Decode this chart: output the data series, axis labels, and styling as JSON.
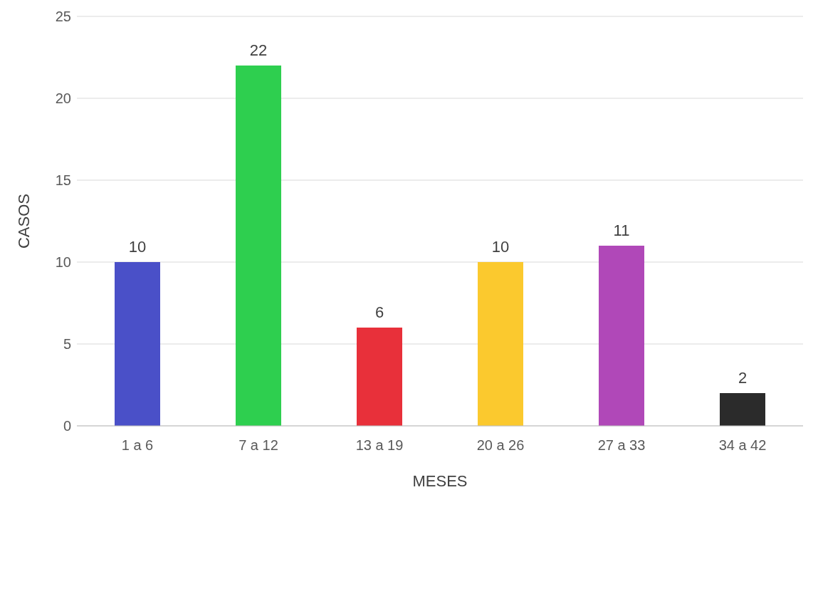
{
  "chart_data": {
    "type": "bar",
    "xlabel": "MESES",
    "ylabel": "CASOS",
    "categories": [
      "1 a 6",
      "7 a 12",
      "13 a 19",
      "20 a 26",
      "27 a 33",
      "34 a 42"
    ],
    "values": [
      10,
      22,
      6,
      10,
      11,
      2
    ],
    "colors": [
      "#4a50c8",
      "#2ecf4f",
      "#e8303a",
      "#fbc92e",
      "#b048b8",
      "#2b2b2b"
    ],
    "ylim": [
      0,
      25
    ],
    "yticks": [
      0,
      5,
      10,
      15,
      20,
      25
    ],
    "grid": "y",
    "data_labels": true
  }
}
